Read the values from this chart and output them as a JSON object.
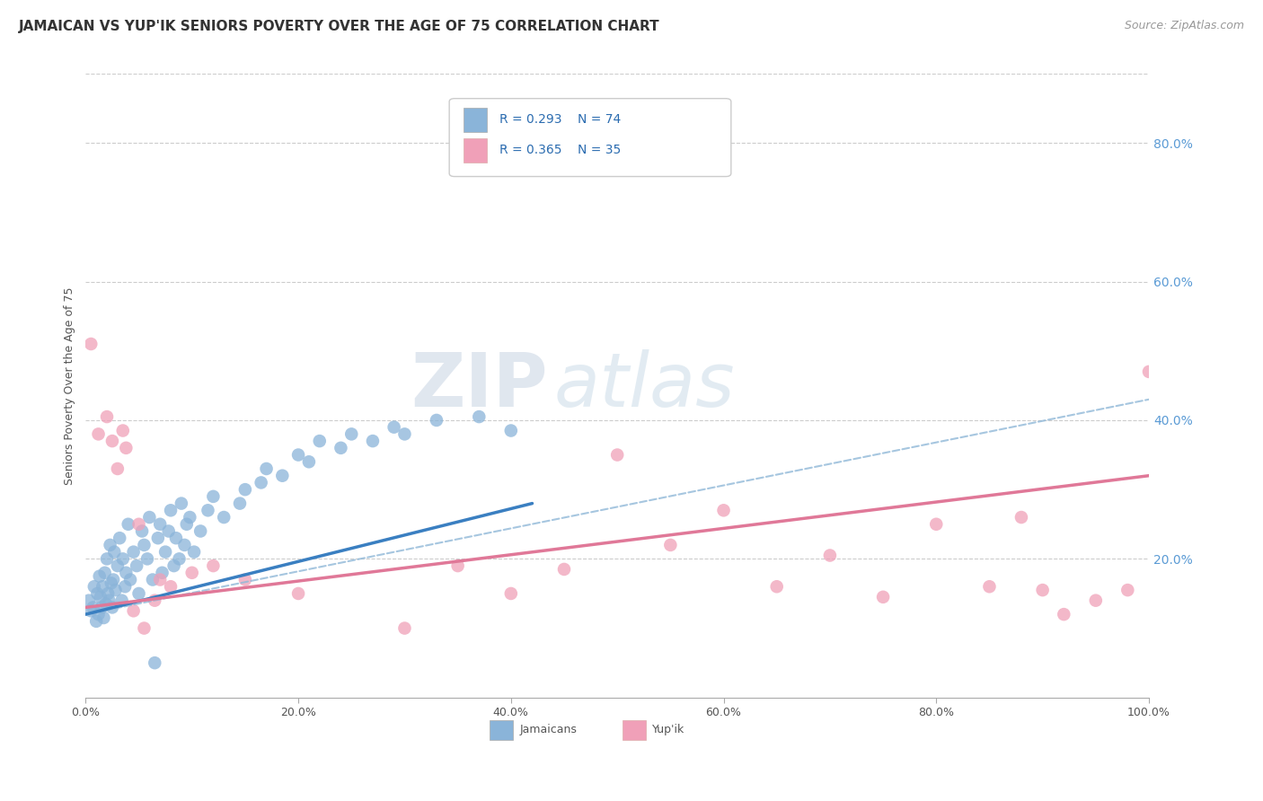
{
  "title": "JAMAICAN VS YUP'IK SENIORS POVERTY OVER THE AGE OF 75 CORRELATION CHART",
  "source": "Source: ZipAtlas.com",
  "ylabel": "Seniors Poverty Over the Age of 75",
  "watermark_zip": "ZIP",
  "watermark_atlas": "atlas",
  "legend_r1": "R = 0.293",
  "legend_n1": "N = 74",
  "legend_r2": "R = 0.365",
  "legend_n2": "N = 35",
  "blue_scatter_color": "#8ab4d9",
  "pink_scatter_color": "#f0a0b8",
  "blue_line_color": "#3a7fc1",
  "pink_line_color": "#e07898",
  "blue_dashed_color": "#90b8d8",
  "jamaicans_x": [
    0.3,
    0.5,
    0.7,
    0.8,
    1.0,
    1.1,
    1.2,
    1.3,
    1.4,
    1.5,
    1.6,
    1.7,
    1.8,
    1.9,
    2.0,
    2.1,
    2.2,
    2.3,
    2.4,
    2.5,
    2.6,
    2.7,
    2.8,
    3.0,
    3.2,
    3.4,
    3.5,
    3.7,
    3.8,
    4.0,
    4.2,
    4.5,
    4.8,
    5.0,
    5.3,
    5.5,
    5.8,
    6.0,
    6.3,
    6.5,
    6.8,
    7.0,
    7.2,
    7.5,
    7.8,
    8.0,
    8.3,
    8.5,
    8.8,
    9.0,
    9.3,
    9.5,
    9.8,
    10.2,
    10.8,
    11.5,
    12.0,
    13.0,
    14.5,
    15.0,
    16.5,
    17.0,
    18.5,
    20.0,
    21.0,
    22.0,
    24.0,
    25.0,
    27.0,
    29.0,
    30.0,
    33.0,
    37.0,
    40.0
  ],
  "jamaicans_y": [
    14.0,
    12.5,
    13.0,
    16.0,
    11.0,
    15.0,
    12.0,
    17.5,
    14.5,
    13.0,
    16.0,
    11.5,
    18.0,
    13.5,
    20.0,
    15.0,
    14.0,
    22.0,
    16.5,
    13.0,
    17.0,
    21.0,
    15.5,
    19.0,
    23.0,
    14.0,
    20.0,
    16.0,
    18.0,
    25.0,
    17.0,
    21.0,
    19.0,
    15.0,
    24.0,
    22.0,
    20.0,
    26.0,
    17.0,
    5.0,
    23.0,
    25.0,
    18.0,
    21.0,
    24.0,
    27.0,
    19.0,
    23.0,
    20.0,
    28.0,
    22.0,
    25.0,
    26.0,
    21.0,
    24.0,
    27.0,
    29.0,
    26.0,
    28.0,
    30.0,
    31.0,
    33.0,
    32.0,
    35.0,
    34.0,
    37.0,
    36.0,
    38.0,
    37.0,
    39.0,
    38.0,
    40.0,
    40.5,
    38.5
  ],
  "yupik_x": [
    0.5,
    1.2,
    2.0,
    2.5,
    3.0,
    3.8,
    4.5,
    5.5,
    6.5,
    8.0,
    10.0,
    12.0,
    15.0,
    20.0,
    30.0,
    35.0,
    40.0,
    45.0,
    50.0,
    55.0,
    60.0,
    65.0,
    70.0,
    75.0,
    80.0,
    85.0,
    88.0,
    90.0,
    92.0,
    95.0,
    98.0,
    100.0,
    3.5,
    5.0,
    7.0
  ],
  "yupik_y": [
    51.0,
    38.0,
    40.5,
    37.0,
    33.0,
    36.0,
    12.5,
    10.0,
    14.0,
    16.0,
    18.0,
    19.0,
    17.0,
    15.0,
    10.0,
    19.0,
    15.0,
    18.5,
    35.0,
    22.0,
    27.0,
    16.0,
    20.5,
    14.5,
    25.0,
    16.0,
    26.0,
    15.5,
    12.0,
    14.0,
    15.5,
    47.0,
    38.5,
    25.0,
    17.0
  ],
  "xlim": [
    0,
    100
  ],
  "ylim": [
    0,
    90
  ],
  "xticks": [
    0,
    20,
    40,
    60,
    80,
    100
  ],
  "xtick_labels": [
    "0.0%",
    "20.0%",
    "40.0%",
    "60.0%",
    "80.0%",
    "100.0%"
  ],
  "yticks_right": [
    20.0,
    40.0,
    60.0,
    80.0
  ],
  "ytick_right_labels": [
    "20.0%",
    "40.0%",
    "60.0%",
    "80.0%"
  ],
  "blue_trend_x0": 0,
  "blue_trend_y0": 12.0,
  "blue_trend_x1": 42,
  "blue_trend_y1": 28.0,
  "blue_dash_x0": 0,
  "blue_dash_y0": 12.0,
  "blue_dash_x1": 100,
  "blue_dash_y1": 43.0,
  "pink_trend_x0": 0,
  "pink_trend_y0": 13.0,
  "pink_trend_x1": 100,
  "pink_trend_y1": 32.0,
  "grid_color": "#cccccc",
  "background_color": "#ffffff",
  "title_fontsize": 11,
  "axis_fontsize": 9,
  "legend_fontsize": 10,
  "source_fontsize": 9
}
